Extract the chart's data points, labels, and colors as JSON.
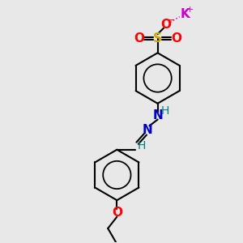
{
  "bg_color": "#e8e8e8",
  "bond_color": "#000000",
  "K_color": "#cc00cc",
  "O_color": "#ff0000",
  "S_color": "#ccaa00",
  "N_color": "#0000cc",
  "H_color": "#008080",
  "lw": 1.5,
  "figsize": [
    3.0,
    3.0
  ],
  "dpi": 100,
  "xlim": [
    0,
    10
  ],
  "ylim": [
    0,
    10
  ]
}
